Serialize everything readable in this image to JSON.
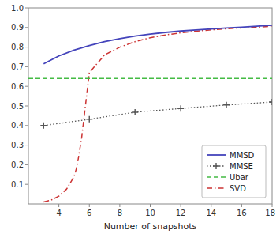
{
  "chart_data": {
    "type": "line",
    "x_label": "Number of snapshots",
    "xlim": [
      2,
      18
    ],
    "ylim": [
      0,
      1.0
    ],
    "xticks": [
      4,
      6,
      8,
      10,
      12,
      14,
      16,
      18
    ],
    "yticks": [
      0.1,
      0.2,
      0.3,
      0.4,
      0.5,
      0.6,
      0.7,
      0.8,
      0.9,
      {
        "value": 1.0,
        "label": "1.0"
      }
    ],
    "grid": false,
    "legend": "lower right",
    "series": [
      {
        "name": "MMSD",
        "color": "#4444bb",
        "line_style": "solid",
        "x": [
          3,
          4,
          5,
          6,
          7,
          8,
          9,
          10,
          11,
          12,
          13,
          14,
          15,
          16,
          17,
          18
        ],
        "values": [
          0.715,
          0.755,
          0.785,
          0.808,
          0.828,
          0.843,
          0.856,
          0.866,
          0.875,
          0.882,
          0.888,
          0.893,
          0.898,
          0.902,
          0.907,
          0.912
        ]
      },
      {
        "name": "MMSE",
        "color": "#555555",
        "line_style": "dotted",
        "marker": "plus",
        "x": [
          3,
          6,
          9,
          12,
          15,
          18
        ],
        "values": [
          0.4,
          0.432,
          0.468,
          0.487,
          0.505,
          0.52
        ]
      },
      {
        "name": "Ubar",
        "color": "#44bb44",
        "line_style": "dashed",
        "x": [
          2,
          18
        ],
        "values": [
          0.64,
          0.64
        ]
      },
      {
        "name": "SVD",
        "color": "#cc3333",
        "line_style": "dashdot",
        "x": [
          3,
          3.5,
          4,
          4.5,
          5,
          5.2,
          5.5,
          6,
          7,
          8,
          9,
          10,
          11,
          12,
          13,
          14,
          15,
          16,
          17,
          18
        ],
        "values": [
          0.01,
          0.02,
          0.04,
          0.075,
          0.14,
          0.195,
          0.34,
          0.67,
          0.76,
          0.8,
          0.828,
          0.848,
          0.862,
          0.873,
          0.881,
          0.888,
          0.894,
          0.898,
          0.902,
          0.906
        ]
      }
    ]
  }
}
